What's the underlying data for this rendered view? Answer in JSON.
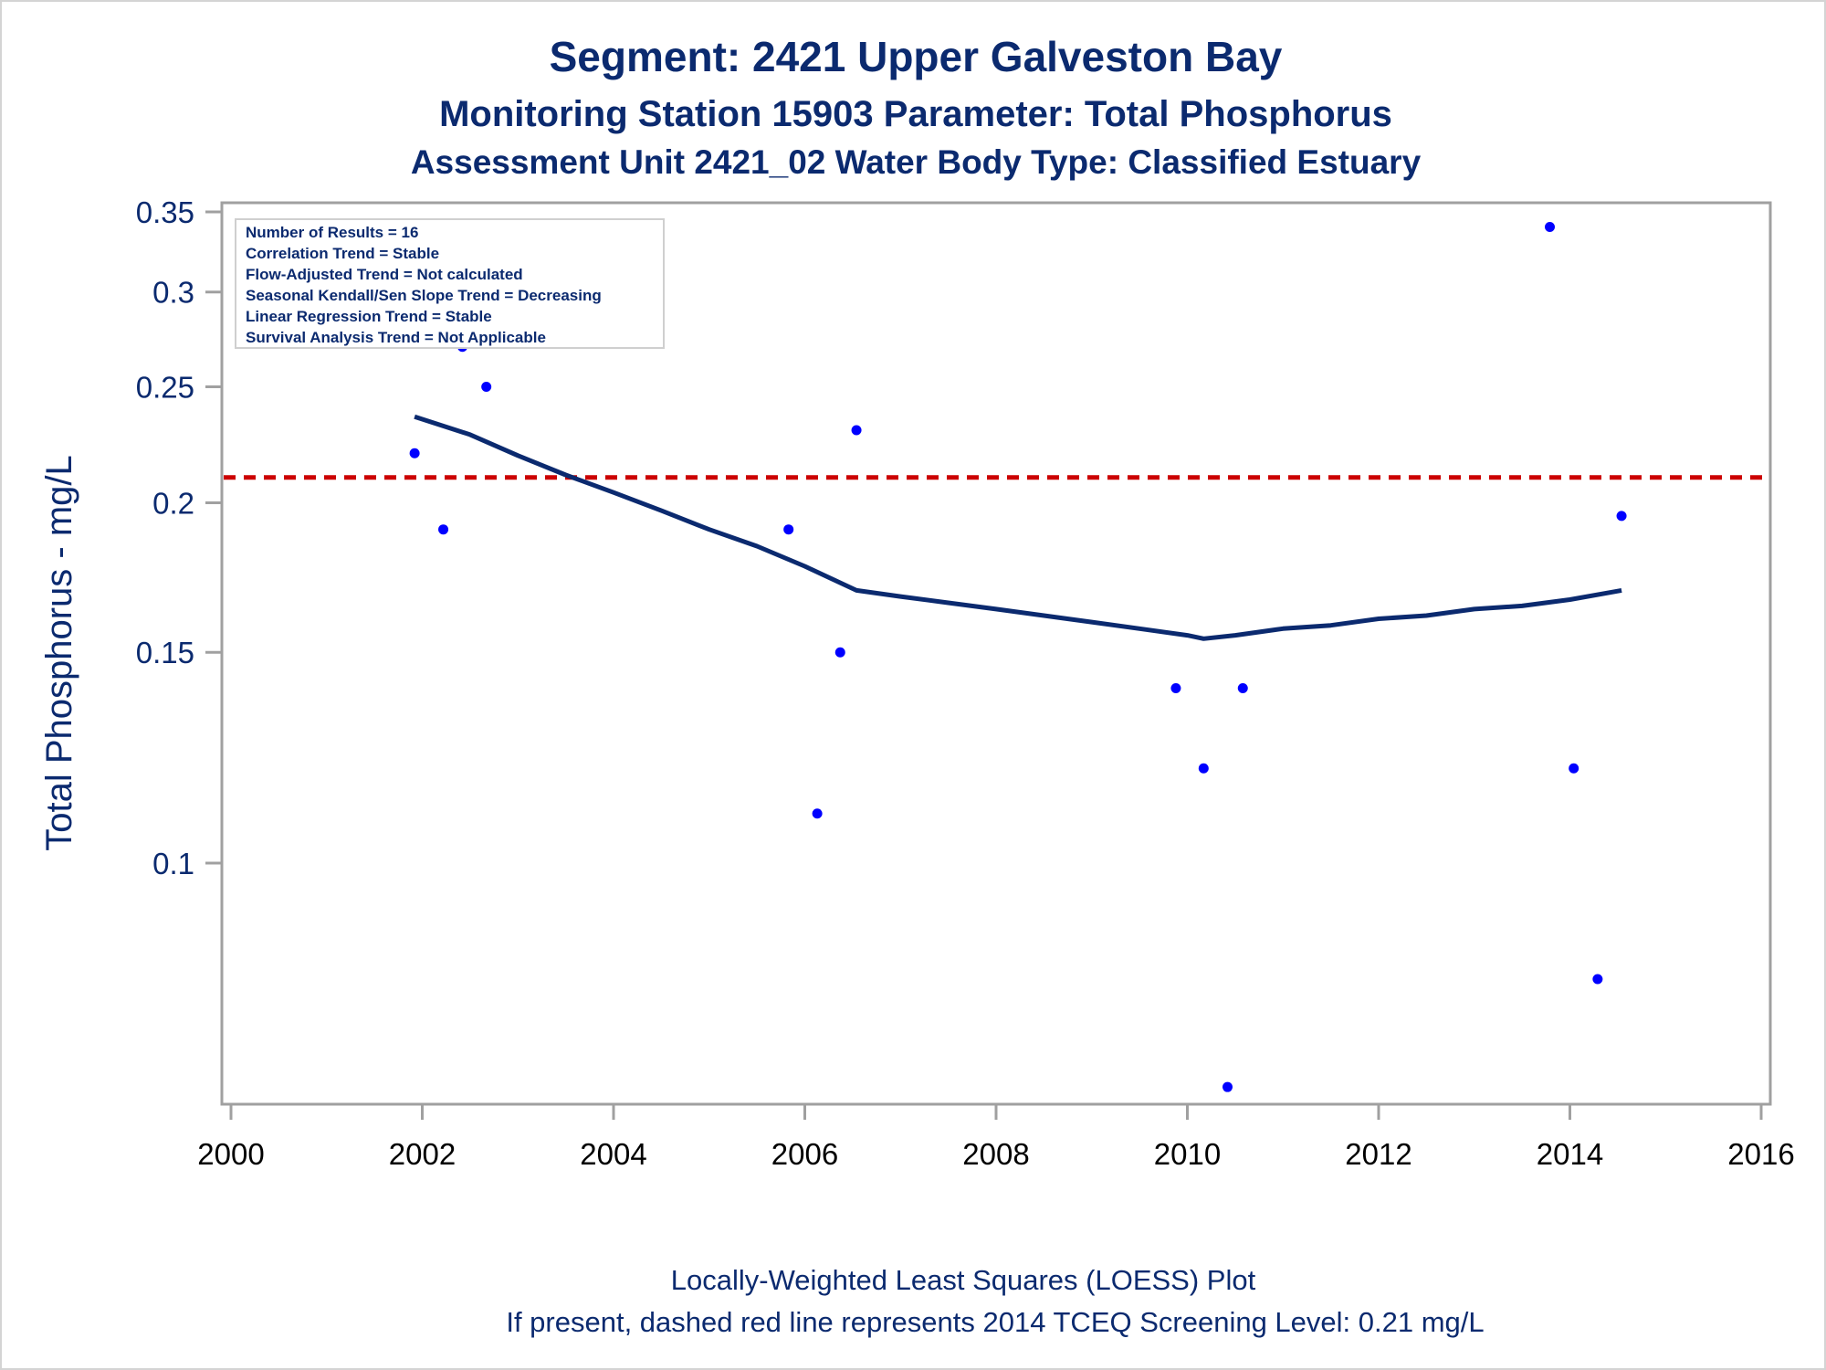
{
  "chart_data": {
    "type": "scatter",
    "title": "Segment: 2421  Upper Galveston Bay",
    "subtitle": "Monitoring Station 15903 Parameter: Total Phosphorus",
    "subtitle2": "Assessment Unit 2421_02   Water Body Type: Classified Estuary",
    "xlabel": "",
    "ylabel": "Total Phosphorus - mg/L",
    "footnote1": "Locally-Weighted Least Squares (LOESS) Plot",
    "footnote2": "If present, dashed red line represents 2014 TCEQ Screening Level: 0.21 mg/L",
    "y_scale": "log",
    "xlim": [
      2000,
      2016
    ],
    "ylim": [
      0.064,
      0.35
    ],
    "x_ticks": [
      {
        "value": 2000,
        "label": "2000"
      },
      {
        "value": 2002,
        "label": "2002"
      },
      {
        "value": 2004,
        "label": "2004"
      },
      {
        "value": 2006,
        "label": "2006"
      },
      {
        "value": 2008,
        "label": "2008"
      },
      {
        "value": 2010,
        "label": "2010"
      },
      {
        "value": 2012,
        "label": "2012"
      },
      {
        "value": 2014,
        "label": "2014"
      },
      {
        "value": 2016,
        "label": "2016"
      }
    ],
    "y_ticks": [
      {
        "value": 0.1,
        "label": "0.1"
      },
      {
        "value": 0.15,
        "label": "0.15"
      },
      {
        "value": 0.2,
        "label": "0.2"
      },
      {
        "value": 0.25,
        "label": "0.25"
      },
      {
        "value": 0.3,
        "label": "0.3"
      },
      {
        "value": 0.35,
        "label": "0.35"
      }
    ],
    "points": [
      {
        "x": 2001.92,
        "y": 0.22
      },
      {
        "x": 2002.22,
        "y": 0.19
      },
      {
        "x": 2002.42,
        "y": 0.27
      },
      {
        "x": 2002.67,
        "y": 0.25
      },
      {
        "x": 2005.83,
        "y": 0.19
      },
      {
        "x": 2006.13,
        "y": 0.11
      },
      {
        "x": 2006.37,
        "y": 0.15
      },
      {
        "x": 2006.54,
        "y": 0.23
      },
      {
        "x": 2009.88,
        "y": 0.14
      },
      {
        "x": 2010.17,
        "y": 0.12
      },
      {
        "x": 2010.42,
        "y": 0.065
      },
      {
        "x": 2010.58,
        "y": 0.14
      },
      {
        "x": 2013.79,
        "y": 0.34
      },
      {
        "x": 2014.04,
        "y": 0.12
      },
      {
        "x": 2014.29,
        "y": 0.08
      },
      {
        "x": 2014.54,
        "y": 0.195
      }
    ],
    "loess": [
      {
        "x": 2001.92,
        "y": 0.236
      },
      {
        "x": 2002.5,
        "y": 0.228
      },
      {
        "x": 2003.0,
        "y": 0.219
      },
      {
        "x": 2003.5,
        "y": 0.211
      },
      {
        "x": 2004.0,
        "y": 0.204
      },
      {
        "x": 2004.5,
        "y": 0.197
      },
      {
        "x": 2005.0,
        "y": 0.19
      },
      {
        "x": 2005.5,
        "y": 0.184
      },
      {
        "x": 2006.0,
        "y": 0.177
      },
      {
        "x": 2006.54,
        "y": 0.169
      },
      {
        "x": 2007.0,
        "y": 0.167
      },
      {
        "x": 2007.5,
        "y": 0.165
      },
      {
        "x": 2008.0,
        "y": 0.163
      },
      {
        "x": 2008.5,
        "y": 0.161
      },
      {
        "x": 2009.0,
        "y": 0.159
      },
      {
        "x": 2009.5,
        "y": 0.157
      },
      {
        "x": 2010.0,
        "y": 0.155
      },
      {
        "x": 2010.17,
        "y": 0.154
      },
      {
        "x": 2010.5,
        "y": 0.155
      },
      {
        "x": 2011.0,
        "y": 0.157
      },
      {
        "x": 2011.5,
        "y": 0.158
      },
      {
        "x": 2012.0,
        "y": 0.16
      },
      {
        "x": 2012.5,
        "y": 0.161
      },
      {
        "x": 2013.0,
        "y": 0.163
      },
      {
        "x": 2013.5,
        "y": 0.164
      },
      {
        "x": 2014.0,
        "y": 0.166
      },
      {
        "x": 2014.54,
        "y": 0.169
      }
    ],
    "screening_level": 0.21,
    "grid": false,
    "colors": {
      "points": "#0000ff",
      "loess": "#0b2a6f",
      "screening_line": "#cc0000",
      "text": "#0b2a6f",
      "axis": "#a0a0a0"
    },
    "inset_box": {
      "placement": "top-left",
      "lines": [
        "Number of Results = 16",
        "Correlation Trend = Stable",
        "Flow-Adjusted Trend = Not calculated",
        "Seasonal Kendall/Sen Slope Trend = Decreasing",
        "Linear Regression Trend = Stable",
        "Survival Analysis Trend = Not Applicable"
      ]
    }
  }
}
